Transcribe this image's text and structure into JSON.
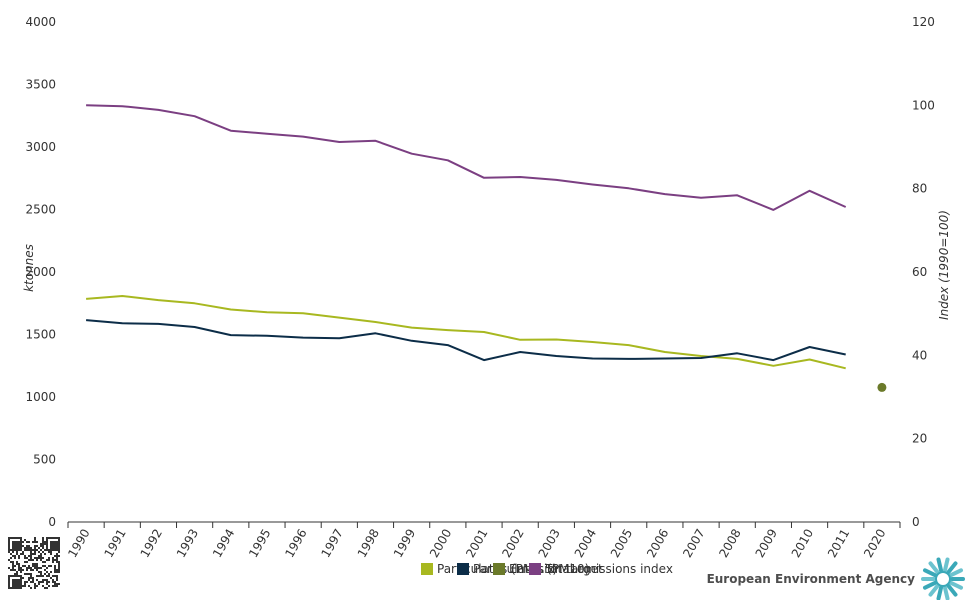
{
  "chart_data": {
    "type": "line",
    "title": "",
    "xlabel": "",
    "ylabel": "ktonnes",
    "ylabel_right": "Index (1990=100)",
    "x": [
      "1990",
      "1991",
      "1992",
      "1993",
      "1994",
      "1995",
      "1996",
      "1997",
      "1998",
      "1999",
      "2000",
      "2001",
      "2002",
      "2003",
      "2004",
      "2005",
      "2006",
      "2007",
      "2008",
      "2009",
      "2010",
      "2011",
      "2020"
    ],
    "ylim": [
      0,
      4000
    ],
    "yticks": [
      0,
      500,
      1000,
      1500,
      2000,
      2500,
      3000,
      3500,
      4000
    ],
    "ylim_right": [
      0,
      120
    ],
    "yticks_right": [
      0,
      20,
      40,
      60,
      80,
      100,
      120
    ],
    "grid": false,
    "legend_position": "bottom-center",
    "series": [
      {
        "name": "Particulates (PM2.5)",
        "color": "#a8b820",
        "axis": "left",
        "values": [
          1785,
          1808,
          1775,
          1750,
          1700,
          1678,
          1670,
          1635,
          1600,
          1555,
          1535,
          1520,
          1458,
          1460,
          1440,
          1415,
          1360,
          1328,
          1305,
          1250,
          1300,
          1230,
          null
        ]
      },
      {
        "name": "Particulates (PM10)",
        "color": "#0c2d48",
        "axis": "left",
        "values": [
          1615,
          1590,
          1585,
          1560,
          1495,
          1490,
          1475,
          1470,
          1510,
          1450,
          1415,
          1295,
          1360,
          1328,
          1308,
          1305,
          1308,
          1312,
          1350,
          1295,
          1400,
          1340,
          null
        ]
      },
      {
        "name": "Total emissions index",
        "color": "#7b3f82",
        "axis": "right",
        "values": [
          100,
          99.8,
          98.9,
          97.4,
          93.9,
          93.2,
          92.5,
          91.2,
          91.5,
          88.4,
          86.8,
          82.6,
          82.8,
          82.1,
          81.0,
          80.1,
          78.7,
          77.8,
          78.4,
          74.9,
          79.5,
          75.6,
          null
        ]
      },
      {
        "name": "Emission target",
        "color": "#6b7a2a",
        "axis": "right",
        "values": [
          null,
          null,
          null,
          null,
          null,
          null,
          null,
          null,
          null,
          null,
          null,
          null,
          null,
          null,
          null,
          null,
          null,
          null,
          null,
          null,
          null,
          null,
          32.3
        ]
      }
    ]
  },
  "branding": {
    "name": "European Environment Agency"
  }
}
